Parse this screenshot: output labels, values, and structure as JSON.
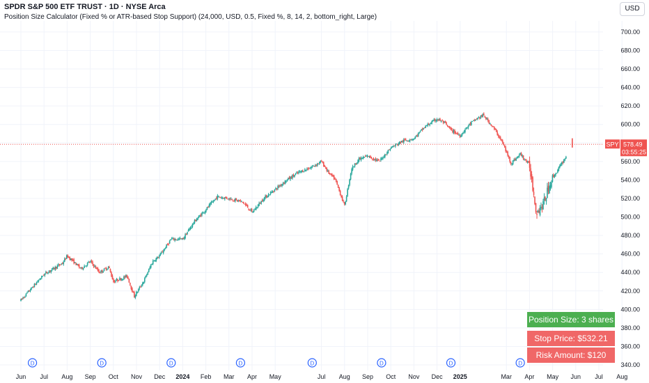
{
  "header": {
    "title": "SPDR S&P 500 ETF TRUST · 1D · NYSE Arca",
    "indicator": "Position Size Calculator (Fixed % or ATR-based Stop Support) (24,000, USD, 0.5, Fixed %, 8, 14, 2, bottom_right, Large)",
    "currency_button": "USD"
  },
  "price_tag": {
    "symbol": "SPY",
    "price": "578.49",
    "countdown": "03:55:25"
  },
  "info_box": {
    "position_size": "Position Size: 3 shares",
    "stop_price": "Stop Price: $532.21",
    "risk_amount": "Risk Amount: $120"
  },
  "colors": {
    "up": "#26a69a",
    "down": "#ef5350",
    "info_green": "#4caf50",
    "info_red": "#f06767"
  },
  "dividend_marker": "D",
  "chart_data": {
    "type": "candlestick",
    "title": "SPDR S&P 500 ETF TRUST · 1D · NYSE Arca",
    "ylim": [
      334,
      712
    ],
    "y_ticks": [
      340,
      360,
      380,
      400,
      420,
      440,
      460,
      480,
      500,
      520,
      540,
      560,
      580,
      600,
      620,
      640,
      660,
      680,
      700
    ],
    "y_tick_labels": [
      "340.00",
      "360.00",
      "380.00",
      "400.00",
      "420.00",
      "440.00",
      "460.00",
      "480.00",
      "500.00",
      "520.00",
      "540.00",
      "560.00",
      "580.00",
      "600.00",
      "620.00",
      "640.00",
      "660.00",
      "680.00",
      "700.00"
    ],
    "x_ticks": [
      {
        "label": "Jun",
        "month": 0,
        "bold": false
      },
      {
        "label": "Jul",
        "month": 1,
        "bold": false
      },
      {
        "label": "Aug",
        "month": 2,
        "bold": false
      },
      {
        "label": "Sep",
        "month": 3,
        "bold": false
      },
      {
        "label": "Oct",
        "month": 4,
        "bold": false
      },
      {
        "label": "Nov",
        "month": 5,
        "bold": false
      },
      {
        "label": "Dec",
        "month": 6,
        "bold": false
      },
      {
        "label": "2024",
        "month": 7,
        "bold": true
      },
      {
        "label": "Feb",
        "month": 8,
        "bold": false
      },
      {
        "label": "Mar",
        "month": 9,
        "bold": false
      },
      {
        "label": "Apr",
        "month": 10,
        "bold": false
      },
      {
        "label": "May",
        "month": 11,
        "bold": false
      },
      {
        "label": "Jul",
        "month": 13,
        "bold": false
      },
      {
        "label": "Aug",
        "month": 14,
        "bold": false
      },
      {
        "label": "Sep",
        "month": 15,
        "bold": false
      },
      {
        "label": "Oct",
        "month": 16,
        "bold": false
      },
      {
        "label": "Nov",
        "month": 17,
        "bold": false
      },
      {
        "label": "Dec",
        "month": 18,
        "bold": false
      },
      {
        "label": "2025",
        "month": 19,
        "bold": true
      },
      {
        "label": "Mar",
        "month": 21,
        "bold": false
      },
      {
        "label": "Apr",
        "month": 22,
        "bold": false
      },
      {
        "label": "May",
        "month": 23,
        "bold": false
      },
      {
        "label": "Jun",
        "month": 24,
        "bold": false
      },
      {
        "label": "Jul",
        "month": 25,
        "bold": false
      },
      {
        "label": "Aug",
        "month": 26,
        "bold": false
      }
    ],
    "dividend_months": [
      0.5,
      3.5,
      6.5,
      9.5,
      12.6,
      15.6,
      18.6,
      21.6
    ],
    "price_path": [
      [
        0,
        410
      ],
      [
        1,
        438
      ],
      [
        1.8,
        450
      ],
      [
        2,
        458
      ],
      [
        2.6,
        444
      ],
      [
        3,
        452
      ],
      [
        3.4,
        440
      ],
      [
        3.8,
        446
      ],
      [
        4,
        430
      ],
      [
        4.6,
        436
      ],
      [
        4.9,
        414
      ],
      [
        5.3,
        430
      ],
      [
        5.7,
        452
      ],
      [
        6,
        458
      ],
      [
        6.5,
        476
      ],
      [
        7,
        476
      ],
      [
        7.5,
        495
      ],
      [
        8,
        508
      ],
      [
        8.5,
        522
      ],
      [
        9,
        520
      ],
      [
        9.6,
        516
      ],
      [
        10,
        505
      ],
      [
        10.5,
        520
      ],
      [
        11,
        530
      ],
      [
        11.5,
        540
      ],
      [
        12,
        548
      ],
      [
        12.5,
        553
      ],
      [
        13,
        560
      ],
      [
        13.3,
        548
      ],
      [
        13.6,
        540
      ],
      [
        14,
        512
      ],
      [
        14.3,
        552
      ],
      [
        14.6,
        562
      ],
      [
        15,
        566
      ],
      [
        15.5,
        560
      ],
      [
        16,
        575
      ],
      [
        16.5,
        582
      ],
      [
        17,
        585
      ],
      [
        17.5,
        598
      ],
      [
        18,
        606
      ],
      [
        18.3,
        602
      ],
      [
        18.6,
        594
      ],
      [
        19,
        588
      ],
      [
        19.4,
        600
      ],
      [
        19.7,
        606
      ],
      [
        20,
        610
      ],
      [
        20.4,
        598
      ],
      [
        20.8,
        582
      ],
      [
        21.2,
        558
      ],
      [
        21.6,
        568
      ],
      [
        22,
        556
      ],
      [
        22.3,
        505
      ],
      [
        22.6,
        514
      ],
      [
        22.9,
        538
      ],
      [
        23.2,
        550
      ],
      [
        23.5,
        562
      ],
      [
        23.6,
        566
      ]
    ],
    "last_price": 578.49,
    "last_candle_high": 585,
    "last_candle_low": 575
  }
}
